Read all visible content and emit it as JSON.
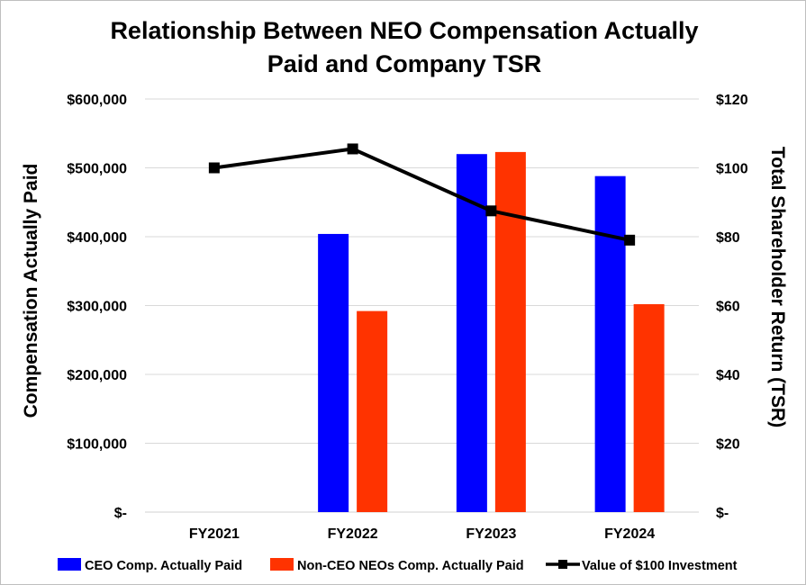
{
  "chart_data": {
    "type": "bar",
    "title_lines": [
      "Relationship Between NEO Compensation Actually",
      "Paid and Company TSR"
    ],
    "categories": [
      "FY2021",
      "FY2022",
      "FY2023",
      "FY2024"
    ],
    "ylabel_left": "Compensation Actually Paid",
    "ylabel_right": "Total Shareholder Return (TSR)",
    "ylim_left": [
      0,
      600000
    ],
    "ylim_right": [
      0,
      120
    ],
    "yticks_left": [
      "$-",
      "$100,000",
      "$200,000",
      "$300,000",
      "$400,000",
      "$500,000",
      "$600,000"
    ],
    "yticks_right": [
      "$-",
      "$20",
      "$40",
      "$60",
      "$80",
      "$100",
      "$120"
    ],
    "grid": true,
    "legend_position": "bottom",
    "series": [
      {
        "name": "CEO Comp. Actually Paid",
        "kind": "bar",
        "axis": "left",
        "color": "#0000ff",
        "values": [
          null,
          404000,
          520000,
          488000
        ]
      },
      {
        "name": "Non-CEO NEOs Comp. Actually Paid",
        "kind": "bar",
        "axis": "left",
        "color": "#ff3300",
        "values": [
          null,
          292000,
          523000,
          302000
        ]
      },
      {
        "name": "Value of $100 Investment",
        "kind": "line",
        "axis": "right",
        "color": "#000000",
        "values": [
          100,
          105.5,
          87.5,
          79
        ]
      }
    ]
  }
}
